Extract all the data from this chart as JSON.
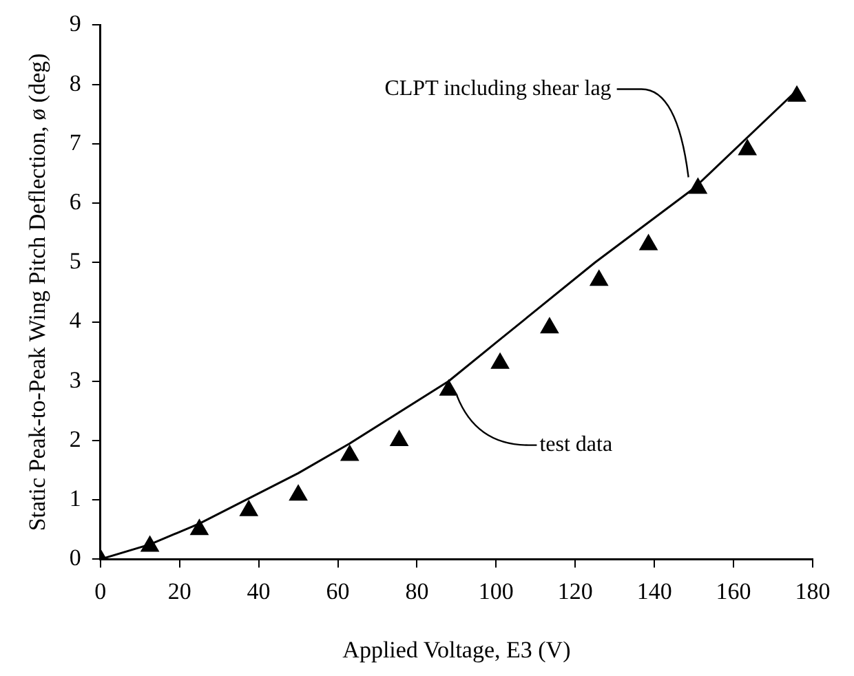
{
  "chart_data": {
    "type": "line",
    "xlabel": "Applied Voltage, E3 (V)",
    "ylabel": "Static Peak-to-Peak Wing Pitch Deflection, ø (deg)",
    "xlim": [
      0,
      180
    ],
    "xticks": [
      0,
      20,
      40,
      60,
      80,
      100,
      120,
      140,
      160,
      180
    ],
    "ylim": [
      0,
      9
    ],
    "yticks": [
      0,
      1,
      2,
      3,
      4,
      5,
      6,
      7,
      8,
      9
    ],
    "grid": false,
    "legend": false,
    "series": [
      {
        "color": "#000000",
        "marker": "none",
        "line_style": "solid",
        "x": [
          0,
          12.5,
          25,
          50,
          63,
          88,
          100,
          125,
          150,
          176
        ],
        "values": [
          0,
          0.25,
          0.6,
          1.45,
          1.95,
          3.0,
          3.65,
          5.0,
          6.25,
          7.9
        ]
      },
      {
        "type": "scatter",
        "color": "#000000",
        "marker": "triangle",
        "x": [
          0,
          12.5,
          25,
          37.5,
          50,
          63,
          75.5,
          88,
          101,
          113.5,
          126,
          138.5,
          151,
          163.5,
          176
        ],
        "values": [
          0,
          0.22,
          0.5,
          0.82,
          1.08,
          1.75,
          2.0,
          2.85,
          3.3,
          3.9,
          4.7,
          5.3,
          6.25,
          6.9,
          7.8
        ]
      }
    ],
    "annotations": [
      {
        "text": "CLPT including shear lag",
        "x": 150,
        "y": 6.25
      },
      {
        "text": "test data",
        "x": 88,
        "y": 2.85
      }
    ]
  }
}
